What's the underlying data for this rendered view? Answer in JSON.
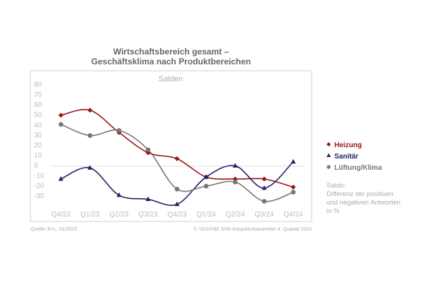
{
  "chart_data": {
    "type": "line",
    "title": [
      "Wirtschaftsbereich gesamt –",
      "Geschäftsklima nach Produktbereichen"
    ],
    "subtitle": "Salden",
    "categories": [
      "Q4/22",
      "Q1/23",
      "Q2/23",
      "Q3/23",
      "Q4/23",
      "Q1/24",
      "Q2/24",
      "Q3/24",
      "Q4/24"
    ],
    "yticks": [
      "80",
      "70",
      "60",
      "50",
      "40",
      "30",
      "20",
      "10",
      "0",
      "-10",
      "-20",
      "-30"
    ],
    "ylim": [
      -45,
      85
    ],
    "smooth": true,
    "grid": false,
    "legend_position": "right",
    "series": [
      {
        "name": "Heizung",
        "color": "#9b1414",
        "marker": "diamond",
        "values": [
          49,
          54,
          32,
          12,
          6,
          -12,
          -14,
          -14,
          -22
        ]
      },
      {
        "name": "Sanitär",
        "color": "#222266",
        "marker": "triangle",
        "values": [
          -14,
          -3,
          -30,
          -34,
          -39,
          -12,
          -1,
          -23,
          3
        ]
      },
      {
        "name": "Lüftung/Klima",
        "color": "#777777",
        "marker": "circle",
        "values": [
          40,
          29,
          34,
          15,
          -24,
          -21,
          -17,
          -36,
          -27
        ]
      }
    ],
    "note": [
      "Saldo:",
      "Differenz der positiven",
      "und negativen Antworten",
      "in %"
    ],
    "source": "Quelle: B+L; 01/2025",
    "copyright": "© VDS/VdZ SHK-Konjukturbarometer 4. Quartal 2024"
  }
}
